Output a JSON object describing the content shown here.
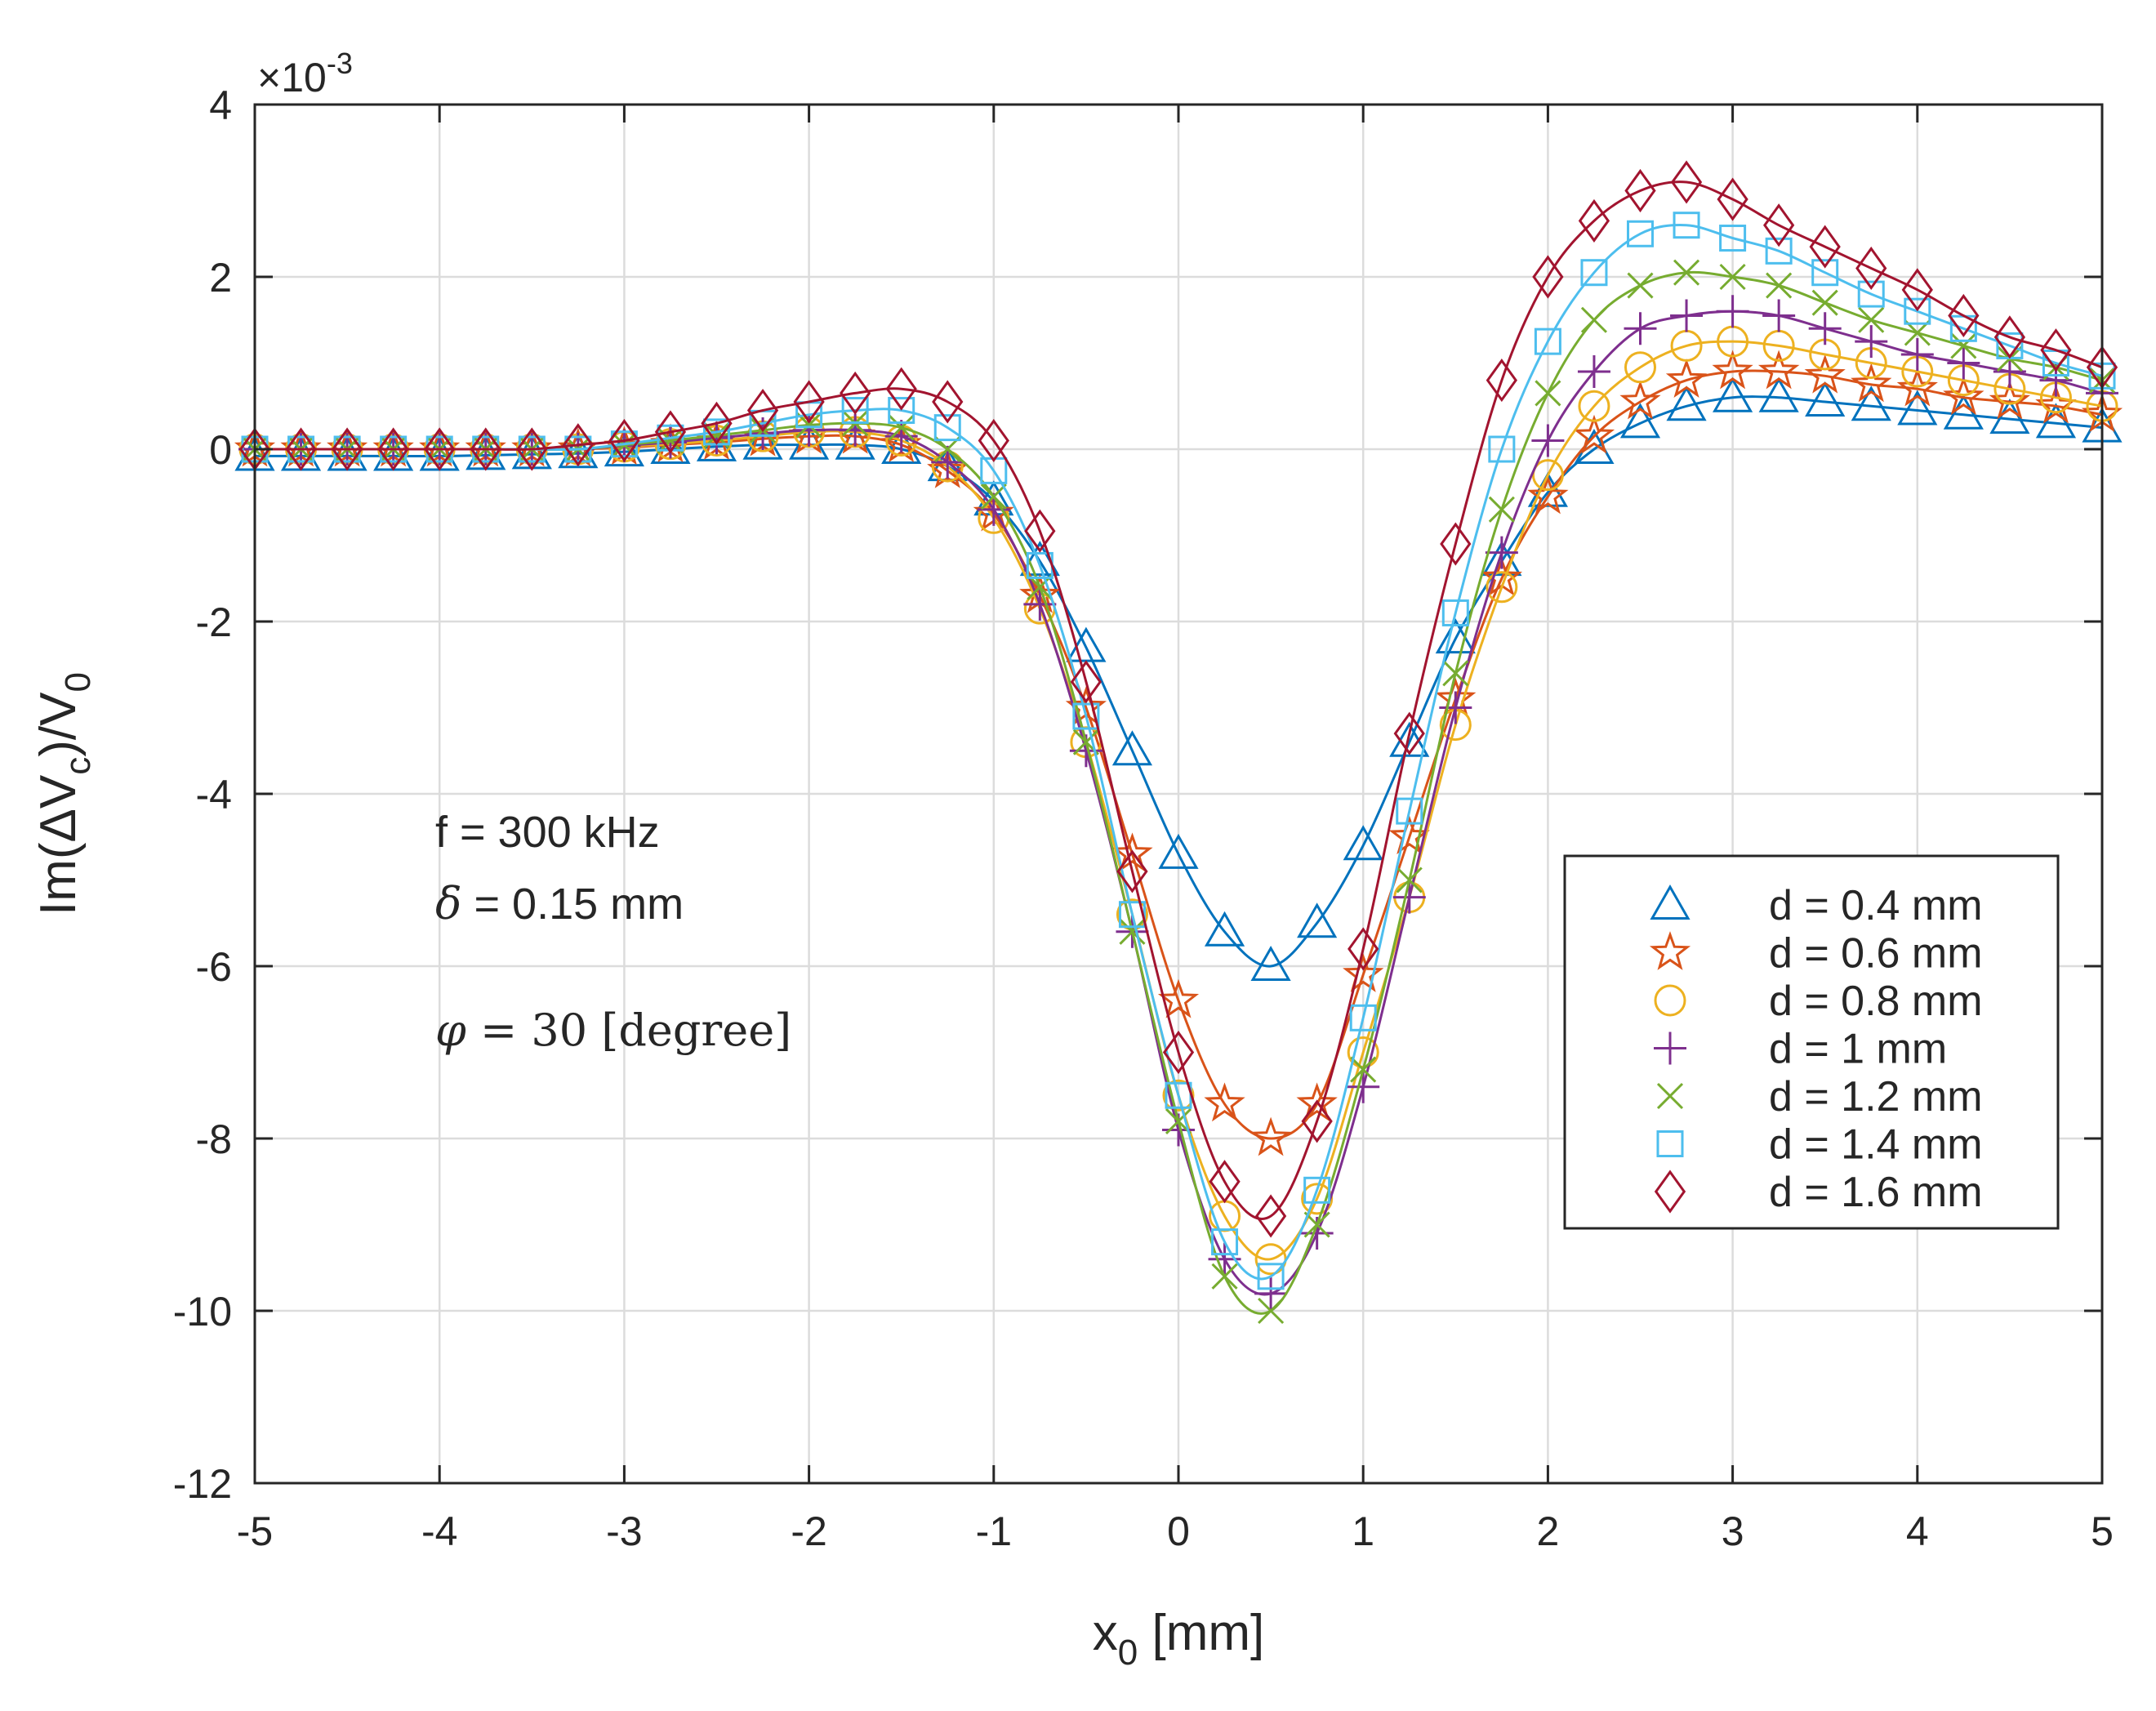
{
  "chart_data": {
    "type": "line",
    "title": "",
    "xlabel": "x_0 [mm]",
    "ylabel": "Im(ΔV_c)/V_0",
    "xlim": [
      -5,
      5
    ],
    "ylim": [
      -12,
      4
    ],
    "x_ticks": [
      "-5",
      "-4",
      "-3",
      "-2",
      "-1",
      "0",
      "1",
      "2",
      "3",
      "4",
      "5"
    ],
    "y_ticks": [
      "-12",
      "-10",
      "-8",
      "-6",
      "-4",
      "-2",
      "0",
      "2",
      "4"
    ],
    "y_exponent_label": "×10",
    "y_exponent_power": "-3",
    "grid": true,
    "legend_position": "bottom-right",
    "annotations": {
      "line1": "f = 300 kHz",
      "line2_symbol": "δ",
      "line2_text": " = 0.15 mm",
      "line3_symbol": "φ",
      "line3_text": " = 30 [degree]"
    },
    "x": [
      -5,
      -4.75,
      -4.5,
      -4.25,
      -4,
      -3.75,
      -3.5,
      -3.25,
      -3,
      -2.75,
      -2.5,
      -2.25,
      -2,
      -1.75,
      -1.5,
      -1.25,
      -1,
      -0.75,
      -0.5,
      -0.25,
      0,
      0.25,
      0.5,
      0.75,
      1,
      1.25,
      1.5,
      1.75,
      2,
      2.25,
      2.5,
      2.75,
      3,
      3.25,
      3.5,
      3.75,
      4,
      4.25,
      4.5,
      4.75,
      5
    ],
    "series": [
      {
        "name": "d = 0.4 mm",
        "color": "#0072BD",
        "marker": "triangle",
        "values": [
          -0.08,
          -0.08,
          -0.08,
          -0.08,
          -0.08,
          -0.07,
          -0.06,
          -0.05,
          -0.03,
          0,
          0.03,
          0.05,
          0.05,
          0.05,
          0,
          -0.2,
          -0.6,
          -1.3,
          -2.3,
          -3.5,
          -4.7,
          -5.6,
          -6.0,
          -5.5,
          -4.6,
          -3.4,
          -2.2,
          -1.3,
          -0.5,
          0.0,
          0.3,
          0.5,
          0.6,
          0.6,
          0.55,
          0.5,
          0.45,
          0.4,
          0.35,
          0.3,
          0.25
        ]
      },
      {
        "name": "d = 0.6 mm",
        "color": "#D95319",
        "marker": "star",
        "values": [
          0,
          0,
          0,
          0,
          0,
          0,
          0,
          0,
          0.02,
          0.05,
          0.08,
          0.12,
          0.15,
          0.15,
          0.05,
          -0.25,
          -0.75,
          -1.7,
          -3.0,
          -4.7,
          -6.4,
          -7.6,
          -8.0,
          -7.6,
          -6.1,
          -4.5,
          -2.9,
          -1.5,
          -0.55,
          0.15,
          0.55,
          0.8,
          0.9,
          0.9,
          0.85,
          0.75,
          0.7,
          0.6,
          0.55,
          0.5,
          0.4
        ]
      },
      {
        "name": "d = 0.8 mm",
        "color": "#EDB120",
        "marker": "circle",
        "values": [
          0,
          0,
          0,
          0,
          0,
          0,
          0,
          0,
          0.03,
          0.06,
          0.1,
          0.15,
          0.2,
          0.2,
          0.1,
          -0.2,
          -0.8,
          -1.85,
          -3.4,
          -5.4,
          -7.5,
          -8.9,
          -9.4,
          -8.7,
          -7.0,
          -5.2,
          -3.2,
          -1.6,
          -0.3,
          0.5,
          0.95,
          1.2,
          1.25,
          1.2,
          1.1,
          1.0,
          0.9,
          0.8,
          0.7,
          0.6,
          0.5
        ]
      },
      {
        "name": "d = 1 mm",
        "color": "#7E2F8E",
        "marker": "plus",
        "values": [
          0,
          0,
          0,
          0,
          0,
          0,
          0,
          0,
          0.04,
          0.08,
          0.13,
          0.18,
          0.22,
          0.22,
          0.15,
          -0.15,
          -0.7,
          -1.8,
          -3.5,
          -5.6,
          -7.9,
          -9.4,
          -9.8,
          -9.1,
          -7.4,
          -5.2,
          -3.0,
          -1.2,
          0.1,
          0.9,
          1.4,
          1.55,
          1.6,
          1.55,
          1.4,
          1.25,
          1.1,
          1.0,
          0.9,
          0.8,
          0.65
        ]
      },
      {
        "name": "d = 1.2 mm",
        "color": "#77AC30",
        "marker": "cross",
        "values": [
          0,
          0,
          0,
          0,
          0,
          0,
          0,
          0,
          0.05,
          0.1,
          0.16,
          0.22,
          0.28,
          0.3,
          0.25,
          0.0,
          -0.55,
          -1.6,
          -3.4,
          -5.6,
          -7.8,
          -9.6,
          -10.0,
          -9.0,
          -7.2,
          -5.0,
          -2.6,
          -0.7,
          0.65,
          1.5,
          1.9,
          2.05,
          2.0,
          1.9,
          1.7,
          1.5,
          1.35,
          1.2,
          1.05,
          0.95,
          0.8
        ]
      },
      {
        "name": "d = 1.4 mm",
        "color": "#4DBEEE",
        "marker": "square",
        "values": [
          0,
          0,
          0,
          0,
          0,
          0,
          0,
          0,
          0.06,
          0.13,
          0.2,
          0.3,
          0.4,
          0.45,
          0.45,
          0.25,
          -0.25,
          -1.35,
          -3.1,
          -5.4,
          -7.5,
          -9.2,
          -9.6,
          -8.6,
          -6.6,
          -4.2,
          -1.9,
          0.0,
          1.25,
          2.05,
          2.5,
          2.6,
          2.45,
          2.3,
          2.05,
          1.8,
          1.6,
          1.4,
          1.2,
          1.0,
          0.85
        ]
      },
      {
        "name": "d = 1.6 mm",
        "color": "#A2142F",
        "marker": "diamond",
        "values": [
          0,
          0,
          0,
          0,
          0,
          0,
          0,
          0.05,
          0.1,
          0.2,
          0.3,
          0.45,
          0.55,
          0.65,
          0.7,
          0.55,
          0.1,
          -0.95,
          -2.7,
          -4.9,
          -7.0,
          -8.5,
          -8.9,
          -7.8,
          -5.8,
          -3.3,
          -1.1,
          0.8,
          2.0,
          2.65,
          3.0,
          3.1,
          2.9,
          2.6,
          2.35,
          2.1,
          1.85,
          1.55,
          1.3,
          1.15,
          0.95
        ]
      }
    ]
  }
}
